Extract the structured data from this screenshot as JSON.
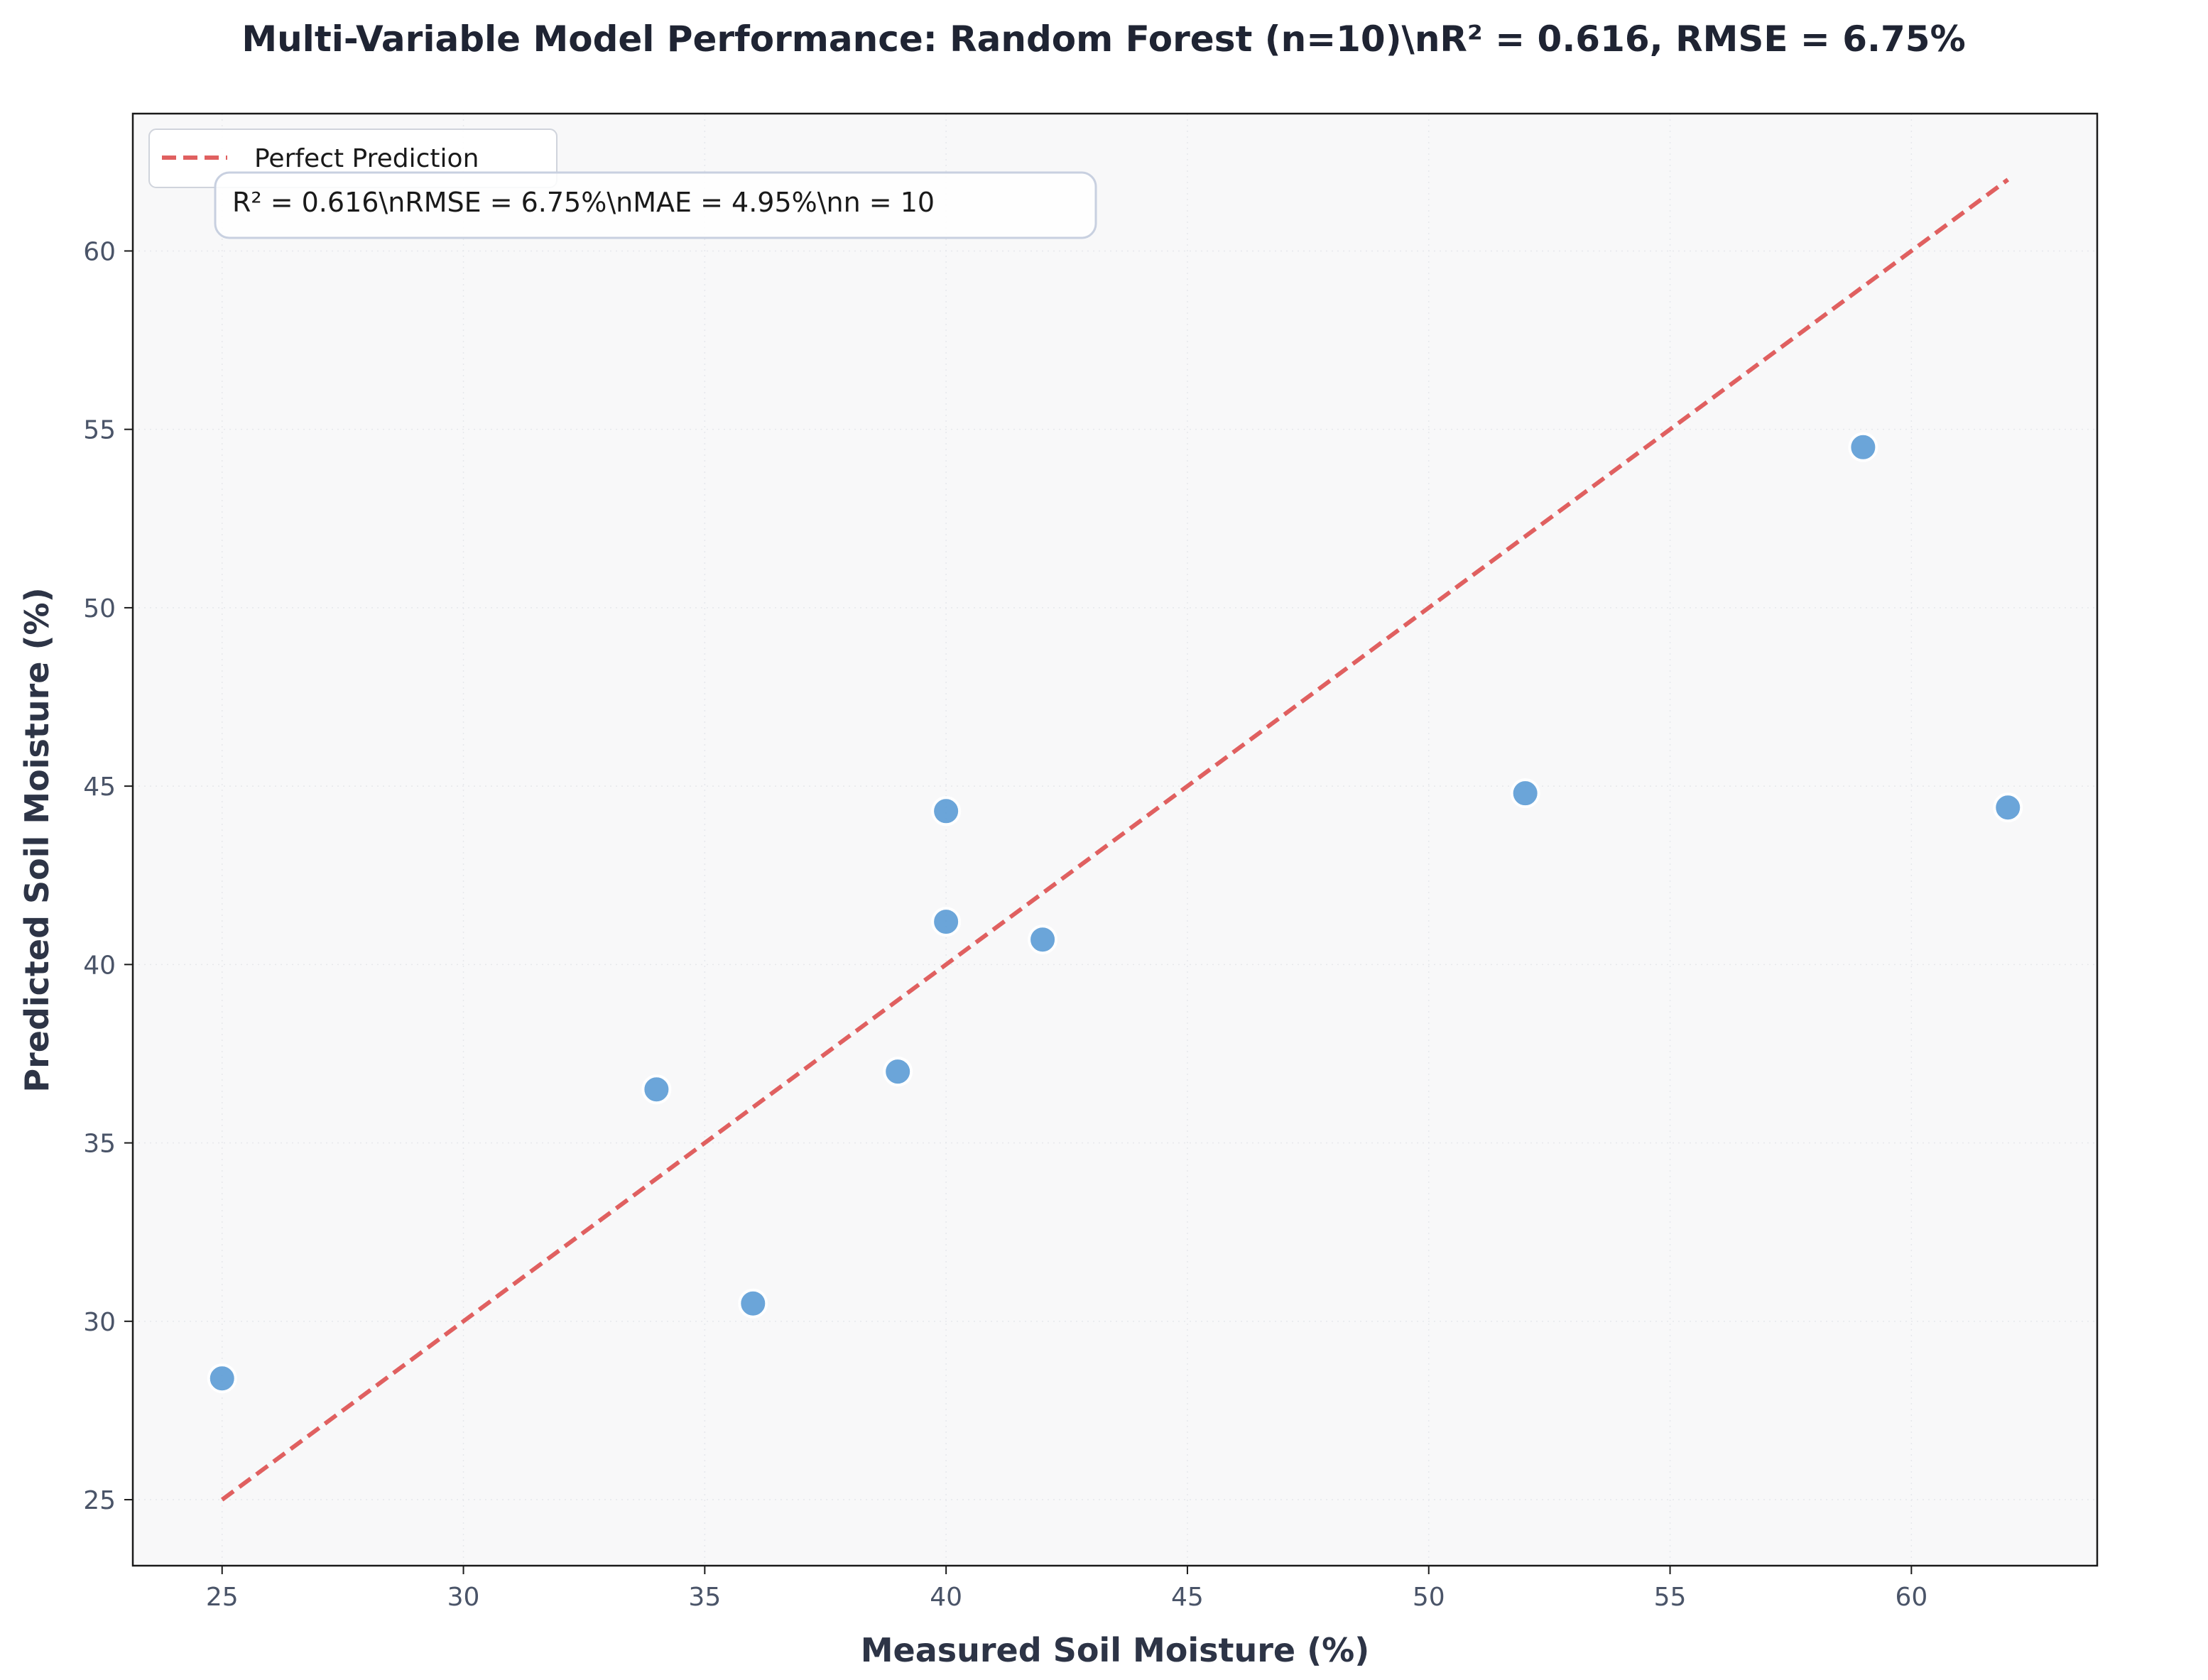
{
  "chart_data": {
    "type": "scatter",
    "title": "Multi-Variable Model Performance: Random Forest (n=10)\\nR² = 0.616, RMSE = 6.75%",
    "xlabel": "Measured Soil Moisture (%)",
    "ylabel": "Predicted Soil Moisture (%)",
    "xlim": [
      23.15,
      63.85
    ],
    "ylim": [
      23.15,
      63.85
    ],
    "xticks": [
      25,
      30,
      35,
      40,
      45,
      50,
      55,
      60
    ],
    "yticks": [
      25,
      30,
      35,
      40,
      45,
      50,
      55,
      60
    ],
    "grid": true,
    "legend_position": "top-left",
    "series": [
      {
        "type": "scatter",
        "color": "#5b9bd5",
        "x": [
          25,
          34,
          36,
          39,
          40,
          40,
          42,
          52,
          59,
          62
        ],
        "y": [
          28.4,
          36.5,
          30.5,
          37.0,
          44.3,
          41.2,
          40.7,
          44.8,
          54.5,
          44.4
        ]
      },
      {
        "type": "line",
        "name": "Perfect Prediction",
        "style": "dashed",
        "color": "#e06060",
        "x": [
          25,
          62
        ],
        "y": [
          25,
          62
        ]
      }
    ],
    "annotation": "R² = 0.616\\nRMSE = 6.75%\\nMAE = 4.95%\\nn = 10"
  }
}
